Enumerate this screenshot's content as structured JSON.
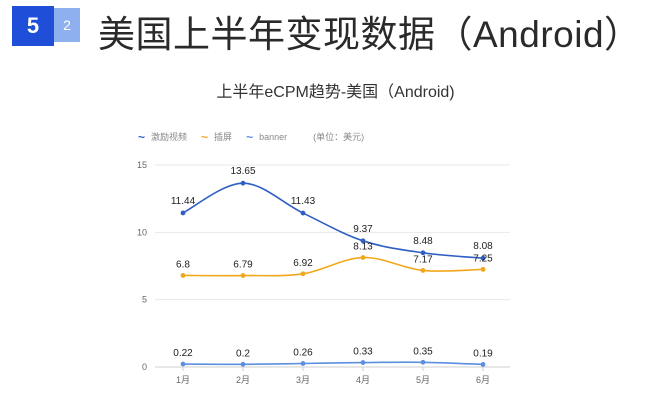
{
  "header": {
    "section_number": "5",
    "subsection_number": "2",
    "title": "美国上半年变现数据（Android）"
  },
  "chart_data": {
    "type": "line",
    "title": "上半年eCPM趋势-美国（Android)",
    "unit_note": "(单位：美元)",
    "categories": [
      "1月",
      "2月",
      "3月",
      "4月",
      "5月",
      "6月"
    ],
    "series": [
      {
        "name": "激励视频",
        "color": "#2f5fc4",
        "values": [
          11.44,
          13.65,
          11.43,
          9.37,
          8.48,
          8.08
        ]
      },
      {
        "name": "插屏",
        "color": "#f2a71b",
        "values": [
          6.8,
          6.79,
          6.92,
          8.13,
          7.17,
          7.25
        ]
      },
      {
        "name": "banner",
        "color": "#5d8fe0",
        "values": [
          0.22,
          0.2,
          0.26,
          0.33,
          0.35,
          0.19
        ]
      }
    ],
    "y_ticks": [
      0,
      5,
      10,
      15
    ],
    "ylim": [
      0,
      15
    ],
    "grid": true,
    "legend_position": "top-left"
  }
}
